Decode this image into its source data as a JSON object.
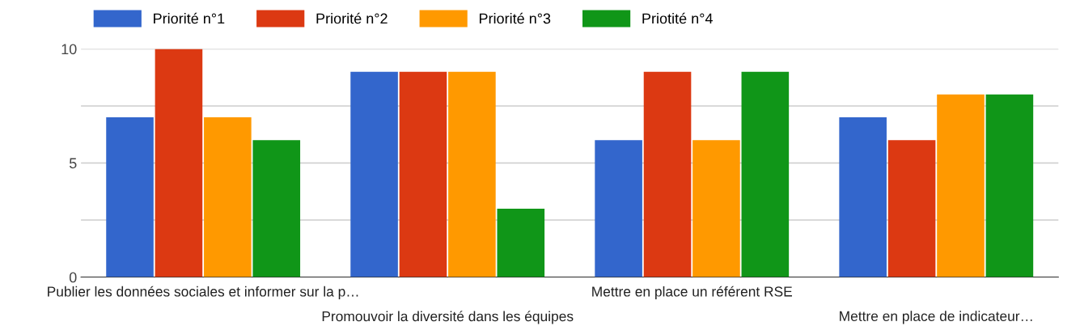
{
  "chart_data": {
    "type": "bar",
    "categories": [
      "Publier les données sociales et informer sur la p…",
      "Promouvoir la diversité dans les équipes",
      "Mettre en place un référent RSE",
      "Mettre en place de indicateur…"
    ],
    "series": [
      {
        "name": "Priorité n°1",
        "color": "#3366cc",
        "values": [
          7,
          9,
          6,
          7
        ]
      },
      {
        "name": "Priorité n°2",
        "color": "#dc3912",
        "values": [
          10,
          9,
          9,
          6
        ]
      },
      {
        "name": "Priorité n°3",
        "color": "#ff9900",
        "values": [
          7,
          9,
          6,
          8
        ]
      },
      {
        "name": "Priotité n°4",
        "color": "#109618",
        "values": [
          6,
          3,
          9,
          8
        ]
      }
    ],
    "ylim": [
      0,
      10
    ],
    "yticks": [
      0,
      {
        "value": 2.5,
        "label": null
      },
      5,
      {
        "value": 7.5,
        "label": null
      },
      10
    ],
    "grid": "y",
    "legend": "top left"
  }
}
